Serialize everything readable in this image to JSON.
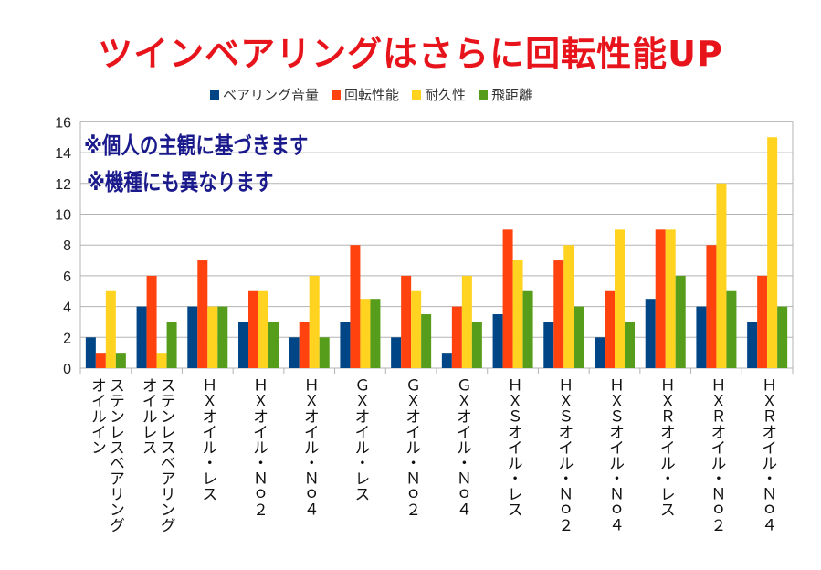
{
  "chart_data": {
    "type": "bar",
    "title": "ツインベアリングはさらに回転性能UP",
    "annotations": [
      "※個人の主観に基づきます",
      "※機種にも異なります"
    ],
    "categories": [
      "オイルイン\nステンレスベアリング",
      "オイルレス\nステンレスベアリング",
      "ＨＸオイル・レス",
      "ＨＸオイル・Ｎｏ２",
      "ＨＸオイル・Ｎｏ４",
      "ＧＸオイル・レス",
      "ＧＸオイル・Ｎｏ２",
      "ＧＸオイル・Ｎｏ４",
      "ＨＸＳオイル・レス",
      "ＨＸＳオイル・Ｎｏ２",
      "ＨＸＳオイル・Ｎｏ４",
      "ＨＸＲオイル・レス",
      "ＨＸＲオイル・Ｎｏ２",
      "ＨＸＲオイル・Ｎｏ４"
    ],
    "series": [
      {
        "name": "ベアリング音量",
        "color": "#004586",
        "values": [
          2,
          4,
          4,
          3,
          2,
          3,
          2,
          1,
          3.5,
          3,
          2,
          4.5,
          4,
          3
        ]
      },
      {
        "name": "回転性能",
        "color": "#ff420e",
        "values": [
          1,
          6,
          7,
          5,
          3,
          8,
          6,
          4,
          9,
          7,
          5,
          9,
          8,
          6
        ]
      },
      {
        "name": "耐久性",
        "color": "#ffd320",
        "values": [
          5,
          1,
          4,
          5,
          6,
          4.5,
          5,
          6,
          7,
          8,
          9,
          9,
          12,
          15
        ]
      },
      {
        "name": "飛距離",
        "color": "#579d1c",
        "values": [
          1,
          3,
          4,
          3,
          2,
          4.5,
          3.5,
          3,
          5,
          4,
          3,
          6,
          5,
          4
        ]
      }
    ],
    "ylim": [
      0,
      16
    ],
    "yticks": [
      "0",
      "2",
      "4",
      "6",
      "8",
      "10",
      "12",
      "14",
      "16"
    ],
    "grid": true,
    "legend": "top"
  }
}
